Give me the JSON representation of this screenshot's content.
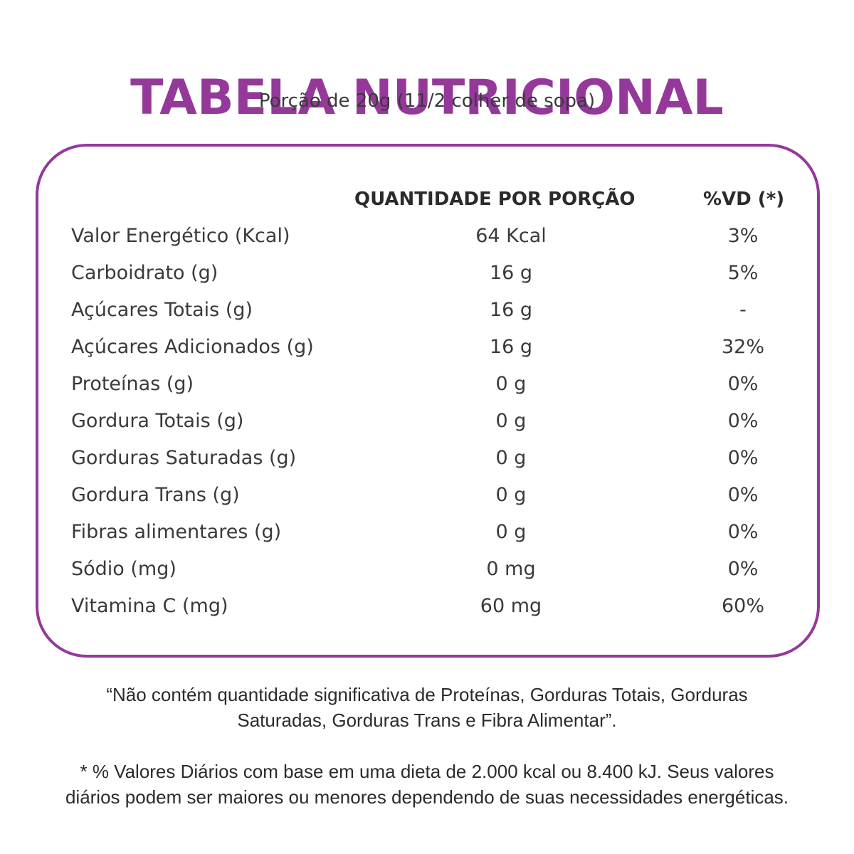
{
  "header": {
    "title": "TABELA NUTRICIONAL",
    "subtitle": "Porção de 20g (11/2 colher de sopa)"
  },
  "table": {
    "columns": {
      "quantity": "QUANTIDADE POR PORÇÃO",
      "daily_value": "%VD (*)"
    },
    "rows": [
      {
        "name": "Valor Energético (Kcal)",
        "quantity": "64 Kcal",
        "daily_value": "3%"
      },
      {
        "name": "Carboidrato (g)",
        "quantity": "16 g",
        "daily_value": "5%"
      },
      {
        "name": "Açúcares Totais (g)",
        "quantity": "16 g",
        "daily_value": "-"
      },
      {
        "name": "Açúcares Adicionados (g)",
        "quantity": "16 g",
        "daily_value": "32%"
      },
      {
        "name": "Proteínas (g)",
        "quantity": "0 g",
        "daily_value": "0%"
      },
      {
        "name": "Gordura Totais (g)",
        "quantity": "0 g",
        "daily_value": "0%"
      },
      {
        "name": "Gorduras Saturadas (g)",
        "quantity": "0 g",
        "daily_value": "0%"
      },
      {
        "name": "Gordura Trans (g)",
        "quantity": "0 g",
        "daily_value": "0%"
      },
      {
        "name": "Fibras alimentares (g)",
        "quantity": "0 g",
        "daily_value": "0%"
      },
      {
        "name": "Sódio (mg)",
        "quantity": "0 mg",
        "daily_value": "0%"
      },
      {
        "name": "Vitamina C (mg)",
        "quantity": "60 mg",
        "daily_value": "60%"
      }
    ]
  },
  "footnotes": {
    "not_significant_line1": "“Não contém quantidade significativa de Proteínas, Gorduras Totais, Gorduras",
    "not_significant_line2": "Saturadas, Gorduras Trans e Fibra Alimentar”.",
    "daily_values_line1": "* % Valores Diários com base em uma dieta de 2.000 kcal ou 8.400 kJ. Seus valores",
    "daily_values_line2": "diários podem ser maiores ou menores dependendo de suas necessidades energéticas."
  },
  "colors": {
    "accent": "#94399a",
    "text": "#3a3a3a"
  }
}
